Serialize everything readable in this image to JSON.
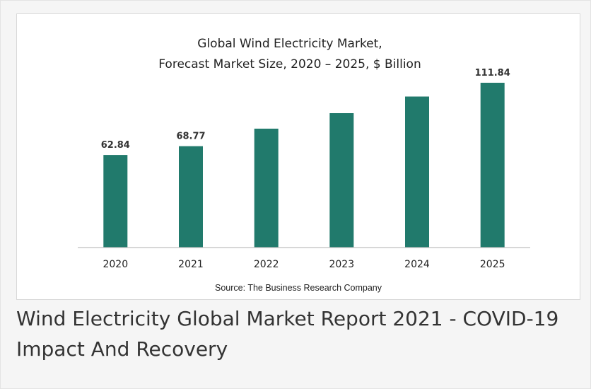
{
  "caption": "Wind Electricity Global Market Report 2021 - COVID-19 Impact And Recovery",
  "colors": {
    "bar": "#217a6c",
    "axis": "#bfbfbf",
    "text": "#222222"
  },
  "chart_data": {
    "type": "bar",
    "title_line1": "Global Wind Electricity Market,",
    "title_line2": "Forecast Market Size, 2020 – 2025, $ Billion",
    "categories": [
      "2020",
      "2021",
      "2022",
      "2023",
      "2024",
      "2025"
    ],
    "values": [
      62.84,
      68.77,
      80.7,
      91.2,
      102.5,
      111.84
    ],
    "data_labels": [
      "62.84",
      "68.77",
      "",
      "",
      "",
      "111.84"
    ],
    "ylim": [
      0,
      120
    ],
    "grid": false,
    "legend": "none",
    "source": "Source: The Business Research Company"
  }
}
